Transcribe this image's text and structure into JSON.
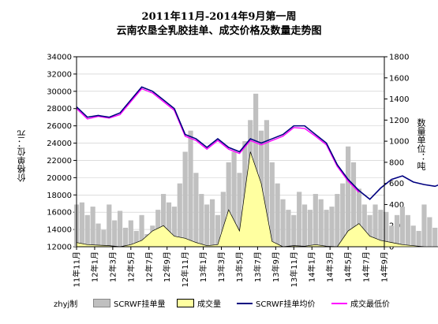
{
  "chart_data": {
    "type": "combo",
    "title": "2011年11月-2014年9月第一周",
    "subtitle": "云南农垦全乳胶挂单、成交价格及数量走势图",
    "ylabel_left": "价格单位：元",
    "ylabel_right": "数量单位：吨",
    "ylim_left": [
      12000,
      34000
    ],
    "ylim_right": [
      0,
      1800
    ],
    "yticks_left": [
      12000,
      14000,
      16000,
      18000,
      20000,
      22000,
      24000,
      26000,
      28000,
      30000,
      32000,
      34000
    ],
    "yticks_right": [
      0,
      200,
      400,
      600,
      800,
      1000,
      1200,
      1400,
      1600,
      1800
    ],
    "x_labels": [
      "11年11月",
      "12年1月",
      "12年3月",
      "12年5月",
      "12年7月",
      "12年9月",
      "12年11月",
      "13年1月",
      "13年3月",
      "13年5月",
      "13年7月",
      "13年9月",
      "13年11月",
      "14年1月",
      "14年3月",
      "14年5月",
      "14年7月",
      "14年9月"
    ],
    "grid": "horizontal",
    "legend_position": "bottom",
    "legend_prefix": "zhyj制",
    "series": [
      {
        "name": "SCRWF挂单量",
        "axis": "right",
        "kind": "bar",
        "color": "#c0c0c0",
        "x": [
          0.0,
          0.3,
          0.6,
          0.9,
          1.2,
          1.5,
          1.8,
          2.1,
          2.4,
          2.7,
          3.0,
          3.3,
          3.6,
          3.9,
          4.2,
          4.5,
          4.8,
          5.1,
          5.4,
          5.7,
          6.0,
          6.3,
          6.6,
          6.9,
          7.2,
          7.5,
          7.8,
          8.1,
          8.4,
          8.7,
          9.0,
          9.3,
          9.6,
          9.9,
          10.2,
          10.5,
          10.8,
          11.1,
          11.4,
          11.7,
          12.0,
          12.3,
          12.6,
          12.9,
          13.2,
          13.5,
          13.8,
          14.1,
          14.4,
          14.7,
          15.0,
          15.3,
          15.6,
          15.9,
          16.2,
          16.5,
          16.8,
          17.1,
          17.4,
          17.7,
          18.0,
          18.3,
          18.6,
          18.9,
          19.2,
          19.5,
          19.8,
          20.1,
          20.4,
          20.7,
          21.0,
          21.3,
          21.6,
          21.9,
          22.2,
          22.5,
          22.8,
          23.1,
          23.4,
          23.7,
          24.0,
          24.3,
          24.6,
          24.9,
          25.2,
          25.5,
          25.8,
          26.1,
          26.4,
          26.7,
          27.0,
          27.3,
          27.6,
          27.9,
          28.2,
          28.5,
          28.8,
          29.1,
          29.4,
          29.7,
          30.0,
          30.3,
          30.6,
          30.9,
          31.2,
          31.5,
          31.8,
          32.1,
          32.4,
          32.7,
          33.0,
          33.3,
          33.6,
          33.9
        ],
        "values": [
          400,
          420,
          300,
          380,
          220,
          160,
          400,
          250,
          340,
          180,
          250,
          150,
          300,
          120,
          200,
          350,
          500,
          420,
          380,
          600,
          900,
          1100,
          700,
          500,
          400,
          450,
          300,
          520,
          800,
          900,
          700,
          1000,
          1200,
          1450,
          1100,
          1200,
          800,
          600,
          450,
          350,
          300,
          520,
          400,
          350,
          500,
          450,
          350,
          380,
          500,
          600,
          950,
          800,
          550,
          400,
          300,
          400,
          350,
          330,
          200,
          300,
          380,
          300,
          200,
          150,
          400,
          280,
          180,
          150,
          120,
          100,
          120,
          180,
          80,
          0,
          0,
          0,
          40,
          20,
          50,
          0,
          0,
          30,
          0,
          20,
          0,
          0,
          60,
          30,
          40,
          250,
          100,
          200,
          160,
          230,
          100,
          250,
          120,
          260,
          160,
          220,
          150,
          280,
          240,
          200,
          180,
          260,
          200,
          220,
          250,
          180,
          200,
          150,
          200,
          150
        ]
      },
      {
        "name": "成交量",
        "axis": "right",
        "kind": "area",
        "color": "#ffffa0",
        "x": [
          0.0,
          0.6,
          1.2,
          1.8,
          2.4,
          3.0,
          3.6,
          4.2,
          4.8,
          5.4,
          6.0,
          6.6,
          7.2,
          7.8,
          8.4,
          9.0,
          9.6,
          10.2,
          10.8,
          11.4,
          12.0,
          12.6,
          13.2,
          13.8,
          14.4,
          15.0,
          15.6,
          16.2,
          16.8,
          17.4,
          18.0,
          18.6,
          19.2,
          19.8,
          20.4,
          21.0,
          21.6,
          22.2,
          22.8,
          23.4,
          24.0,
          33.9
        ],
        "values": [
          40,
          20,
          15,
          10,
          0,
          20,
          60,
          150,
          200,
          100,
          80,
          40,
          10,
          20,
          350,
          150,
          900,
          600,
          50,
          0,
          10,
          5,
          20,
          5,
          0,
          150,
          220,
          100,
          60,
          40,
          20,
          10,
          0,
          0,
          0,
          0,
          0,
          0,
          0,
          0,
          0,
          0
        ]
      },
      {
        "name": "SCRWF挂单均价",
        "axis": "left",
        "kind": "line",
        "color": "#000080",
        "x": [
          0.0,
          0.6,
          1.2,
          1.8,
          2.4,
          3.0,
          3.6,
          4.2,
          4.8,
          5.4,
          6.0,
          6.6,
          7.2,
          7.8,
          8.4,
          9.0,
          9.6,
          10.2,
          10.8,
          11.4,
          12.0,
          12.6,
          13.2,
          13.8,
          14.4,
          15.0,
          15.6,
          16.2,
          16.8,
          17.4,
          18.0,
          18.6,
          19.2,
          19.8,
          20.4,
          21.0,
          21.6,
          22.2,
          22.8,
          23.4,
          24.0,
          24.6,
          25.2,
          25.8,
          26.4,
          27.0,
          27.6,
          28.2,
          28.8,
          29.4,
          30.0,
          30.6,
          31.2,
          31.8,
          32.4,
          33.0,
          33.6,
          33.9
        ],
        "values": [
          28200,
          27000,
          27200,
          27000,
          27500,
          29000,
          30500,
          30000,
          29000,
          28000,
          25000,
          24500,
          23500,
          24500,
          23500,
          23000,
          24500,
          24000,
          24500,
          25000,
          26000,
          26000,
          25000,
          24000,
          21500,
          19800,
          18500,
          17500,
          18800,
          19800,
          20200,
          19500,
          19200,
          19000,
          19500,
          19500,
          19500,
          19000,
          19000,
          17000,
          17000,
          16800,
          16600,
          16800,
          16300,
          16600,
          16200,
          16000,
          16400,
          15800,
          15500,
          15800,
          15000,
          15100,
          14500,
          14000,
          13800,
          13700
        ]
      },
      {
        "name": "成交最低价",
        "axis": "left",
        "kind": "line",
        "color": "#ff00ff",
        "x": [
          0.0,
          0.6,
          1.2,
          1.8,
          2.4,
          3.0,
          3.6,
          4.2,
          4.8,
          5.4,
          6.0,
          6.6,
          7.2,
          7.8,
          8.4,
          9.0,
          9.6,
          10.2,
          10.8,
          11.4,
          12.0,
          12.6,
          13.2,
          13.8,
          14.4,
          15.0,
          15.6
        ],
        "values": [
          28000,
          26800,
          27100,
          26900,
          27300,
          28800,
          30300,
          29800,
          28800,
          27800,
          24800,
          24300,
          23300,
          24300,
          23300,
          22800,
          24300,
          23800,
          24300,
          24800,
          25800,
          25700,
          24800,
          23800,
          21300,
          19600,
          18300
        ]
      }
    ]
  }
}
